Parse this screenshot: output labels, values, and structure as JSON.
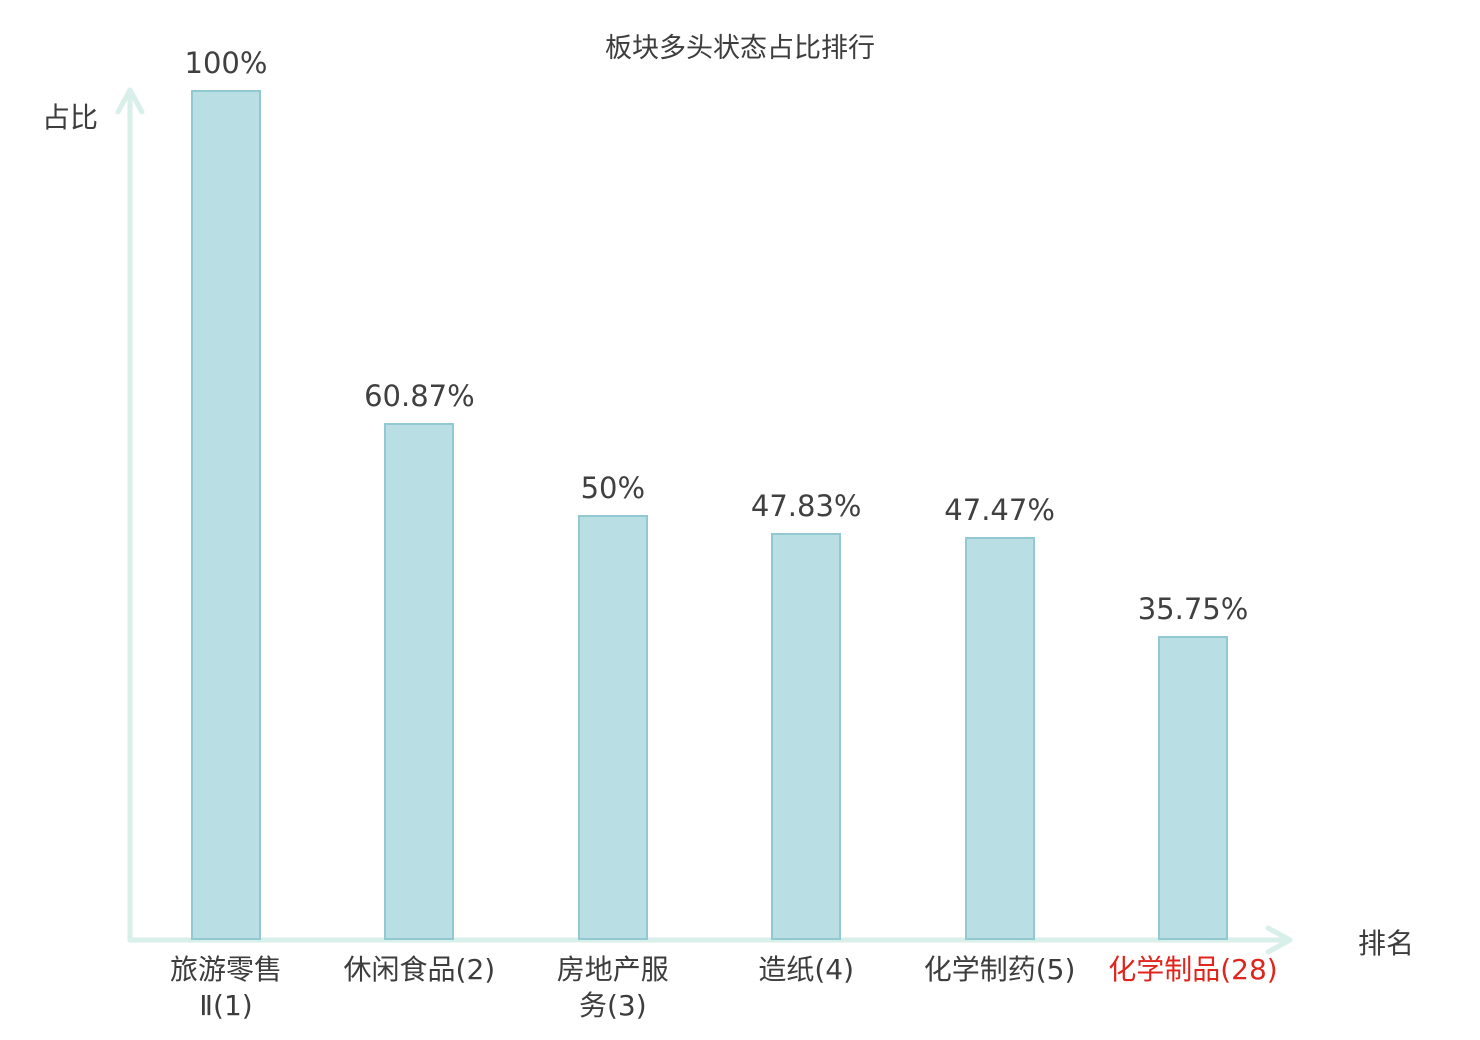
{
  "chart_data": {
    "type": "bar",
    "title": "板块多头状态占比排行",
    "ylabel": "占比",
    "xlabel": "排名",
    "categories": [
      "旅游零售\nⅡ(1)",
      "休闲食品(2)",
      "房地产服\n务(3)",
      "造纸(4)",
      "化学制药(5)",
      "化学制品(28)"
    ],
    "values": [
      100,
      60.87,
      50,
      47.83,
      47.47,
      35.75
    ],
    "value_labels": [
      "100%",
      "60.87%",
      "50%",
      "47.83%",
      "47.47%",
      "35.75%"
    ],
    "ylim": [
      0,
      100
    ],
    "grid": false,
    "legend": "none",
    "highlight_index": 5,
    "colors": {
      "bar_fill": "#b9dfe4",
      "bar_border": "#92c8d1",
      "axis": "#d9efea",
      "text": "#3d3d3d",
      "highlight": "#e0251c"
    }
  }
}
